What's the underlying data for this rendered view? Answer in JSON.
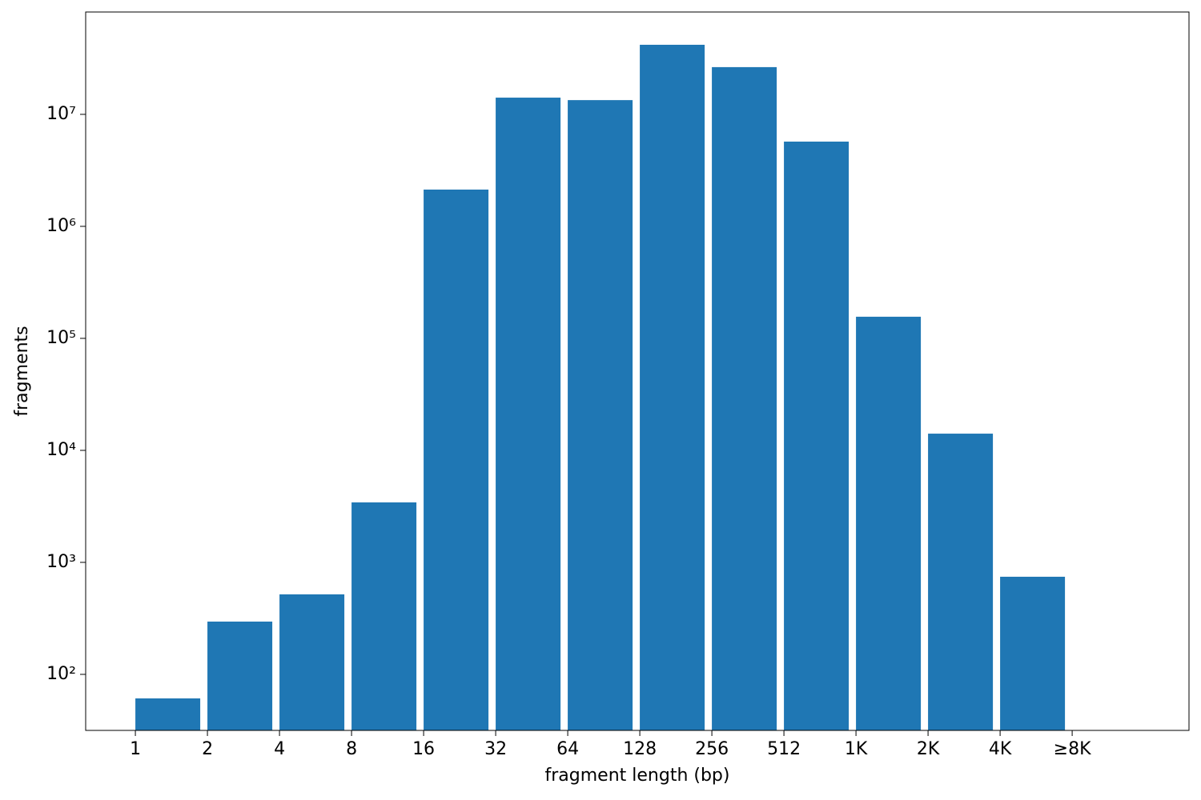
{
  "chart_data": {
    "type": "histogram",
    "xlabel": "fragment length (bp)",
    "ylabel": "fragments",
    "bins": [
      1,
      2,
      4,
      8,
      16,
      32,
      64,
      128,
      256,
      512,
      1024,
      2048,
      4096,
      8192
    ],
    "values": [
      61,
      296,
      518,
      3430,
      2130000,
      14100000,
      13400000,
      41800000,
      26400000,
      5710000,
      156000,
      14100,
      744
    ],
    "color": "#1f77b4",
    "xscale": "log",
    "yscale": "log",
    "xlim": [
      0.62,
      25200
    ],
    "ylim": [
      31.6,
      82000000
    ],
    "xticks": [
      1,
      2,
      4,
      8,
      16,
      32,
      64,
      128,
      256,
      512,
      {
        "value": 1024,
        "label": "1K"
      },
      {
        "value": 2048,
        "label": "2K"
      },
      {
        "value": 4096,
        "label": "4K"
      },
      {
        "value": 8192,
        "label": "≥8K"
      }
    ],
    "yticks": [
      {
        "value": 100,
        "label": "10²"
      },
      {
        "value": 1000,
        "label": "10³"
      },
      {
        "value": 10000,
        "label": "10⁴"
      },
      {
        "value": 100000,
        "label": "10⁵"
      },
      {
        "value": 1000000,
        "label": "10⁶"
      },
      {
        "value": 10000000,
        "label": "10⁷"
      }
    ]
  }
}
